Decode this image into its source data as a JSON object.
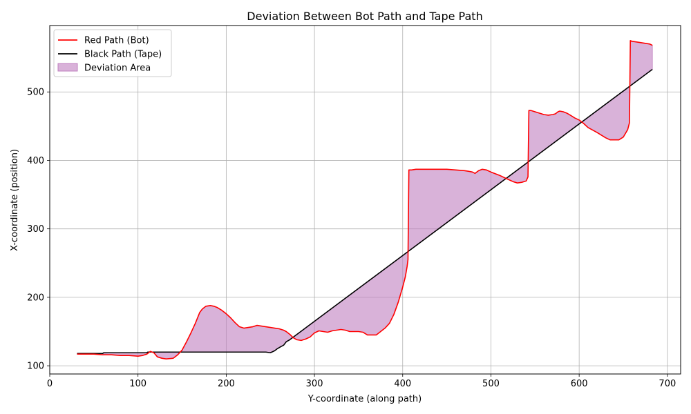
{
  "chart_data": {
    "type": "line",
    "title": "Deviation Between Bot Path and Tape Path",
    "xlabel": "Y-coordinate (along path)",
    "ylabel": "X-coordinate (position)",
    "xlim": [
      0,
      715
    ],
    "ylim": [
      88,
      597
    ],
    "xticks": [
      0,
      100,
      200,
      300,
      400,
      500,
      600,
      700
    ],
    "yticks": [
      100,
      200,
      300,
      400,
      500
    ],
    "grid": true,
    "legend_position": "top-left",
    "colors": {
      "red_path": "#ff0000",
      "black_path": "#000000",
      "deviation_fill": "#bf7fbf",
      "grid": "#b0b0b0"
    },
    "legend": [
      {
        "label": "Red Path (Bot)",
        "kind": "line",
        "color": "#ff0000"
      },
      {
        "label": "Black Path (Tape)",
        "kind": "line",
        "color": "#000000"
      },
      {
        "label": "Deviation Area",
        "kind": "area",
        "color": "#bf7fbf"
      }
    ],
    "series": [
      {
        "name": "Red Path (Bot)",
        "x": [
          31,
          50,
          60,
          70,
          80,
          90,
          100,
          105,
          110,
          114,
          118,
          122,
          127,
          132,
          140,
          145,
          150,
          155,
          160,
          165,
          170,
          173,
          177,
          182,
          186,
          190,
          195,
          200,
          205,
          210,
          215,
          220,
          225,
          230,
          235,
          240,
          245,
          250,
          255,
          260,
          265,
          268,
          272,
          276,
          280,
          285,
          290,
          295,
          300,
          305,
          310,
          315,
          320,
          325,
          330,
          335,
          340,
          345,
          350,
          355,
          360,
          365,
          370,
          375,
          380,
          385,
          390,
          395,
          400,
          403,
          405,
          406,
          407,
          410,
          415,
          430,
          450,
          460,
          470,
          475,
          479,
          482,
          486,
          490,
          495,
          500,
          510,
          520,
          525,
          530,
          535,
          540,
          542,
          543,
          545,
          550,
          560,
          565,
          570,
          573,
          576,
          578,
          582,
          586,
          590,
          595,
          600,
          605,
          610,
          620,
          630,
          635,
          640,
          645,
          650,
          655,
          657,
          658,
          660,
          670,
          680,
          683
        ],
        "y": [
          117,
          117,
          116,
          116,
          115,
          115,
          114,
          115,
          117,
          121,
          119,
          113,
          111,
          110,
          111,
          116,
          123,
          135,
          148,
          162,
          178,
          183,
          187,
          188,
          187,
          185,
          181,
          176,
          170,
          163,
          157,
          155,
          156,
          157,
          159,
          158,
          157,
          156,
          155,
          154,
          152,
          150,
          146,
          141,
          138,
          137,
          139,
          142,
          148,
          151,
          150,
          149,
          151,
          152,
          153,
          152,
          150,
          150,
          150,
          149,
          145,
          145,
          145,
          150,
          155,
          162,
          175,
          193,
          215,
          230,
          245,
          255,
          386,
          386,
          387,
          387,
          387,
          386,
          385,
          384,
          383,
          381,
          385,
          387,
          386,
          383,
          378,
          372,
          369,
          367,
          368,
          370,
          376,
          473,
          473,
          471,
          467,
          466,
          467,
          468,
          471,
          472,
          471,
          469,
          466,
          462,
          459,
          454,
          448,
          441,
          433,
          430,
          430,
          430,
          434,
          445,
          455,
          575,
          574,
          572,
          570,
          568
        ]
      },
      {
        "name": "Black Path (Tape)",
        "x": [
          31,
          60,
          61,
          110,
          111,
          160,
          161,
          245,
          250,
          255,
          258,
          262,
          265,
          268,
          272,
          683
        ],
        "y": [
          118,
          118,
          119,
          119,
          120,
          120,
          120,
          120,
          119,
          122,
          125,
          128,
          130,
          135,
          138,
          533
        ]
      }
    ]
  }
}
